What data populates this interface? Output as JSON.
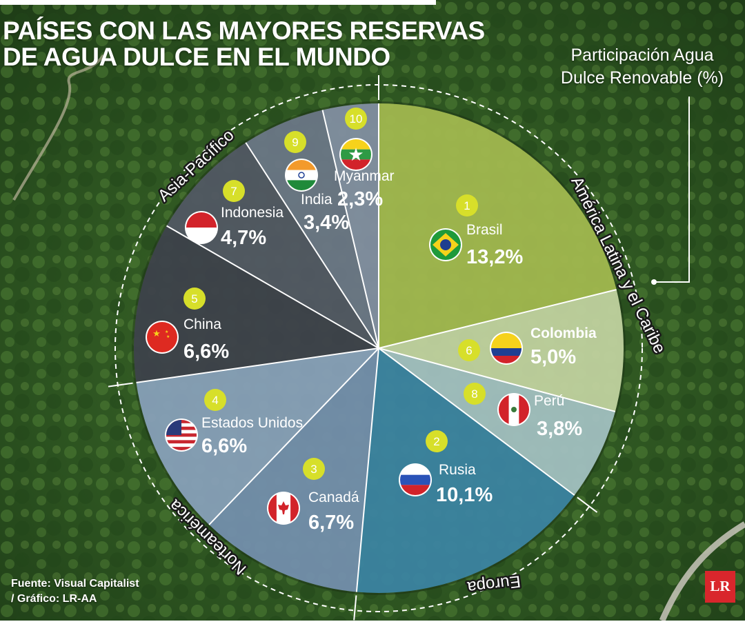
{
  "header": {
    "title_line1": "PAÍSES CON LAS MAYORES RESERVAS",
    "title_line2": "DE AGUA DULCE EN EL MUNDO"
  },
  "measure_label": {
    "line1": "Participación Agua",
    "line2": "Dulce Renovable (%)"
  },
  "source": {
    "line1": "Fuente: Visual Capitalist",
    "line2": "/ Gráfico: LR-AA"
  },
  "logo_text": "LR",
  "regions": [
    {
      "name": "América Latina y el Caribe",
      "color": "#c5cf6a"
    },
    {
      "name": "Europa",
      "color": "#2f7fa3"
    },
    {
      "name": "Norteamérica",
      "color": "#8fa6c2"
    },
    {
      "name": "Asia-Pacífico",
      "color": "#4a4f5c"
    }
  ],
  "chart_data": {
    "type": "pie",
    "unit": "%",
    "slices": [
      {
        "rank": "1",
        "country": "Brasil",
        "value": 13.2,
        "label": "13,2%",
        "region": "América Latina y el Caribe",
        "flag": "flag-brazil-icon",
        "color": "#a9bf52"
      },
      {
        "rank": "6",
        "country": "Colombia",
        "value": 5.0,
        "label": "5,0%",
        "region": "América Latina y el Caribe",
        "flag": "flag-colombia-icon",
        "color": "#c9d9a6"
      },
      {
        "rank": "8",
        "country": "Perú",
        "value": 3.8,
        "label": "3,8%",
        "region": "América Latina y el Caribe",
        "flag": "flag-peru-icon",
        "color": "#a9c7c9"
      },
      {
        "rank": "2",
        "country": "Rusia",
        "value": 10.1,
        "label": "10,1%",
        "region": "Europa",
        "flag": "flag-russia-icon",
        "color": "#3d87a9"
      },
      {
        "rank": "3",
        "country": "Canadá",
        "value": 6.7,
        "label": "6,7%",
        "region": "Norteamérica",
        "flag": "flag-canada-icon",
        "color": "#7893b4"
      },
      {
        "rank": "4",
        "country": "Estados Unidos",
        "value": 6.6,
        "label": "6,6%",
        "region": "Norteamérica",
        "flag": "flag-usa-icon",
        "color": "#8da5c1"
      },
      {
        "rank": "5",
        "country": "China",
        "value": 6.6,
        "label": "6,6%",
        "region": "Asia-Pacífico",
        "flag": "flag-china-icon",
        "color": "#3f434e"
      },
      {
        "rank": "7",
        "country": "Indonesia",
        "value": 4.7,
        "label": "4,7%",
        "region": "Asia-Pacífico",
        "flag": "flag-indonesia-icon",
        "color": "#545a67"
      },
      {
        "rank": "9",
        "country": "India",
        "value": 3.4,
        "label": "3,4%",
        "region": "Asia-Pacífico",
        "flag": "flag-india-icon",
        "color": "#6f7a8c"
      },
      {
        "rank": "10",
        "country": "Myanmar",
        "value": 2.3,
        "label": "2,3%",
        "region": "Asia-Pacífico",
        "flag": "flag-myanmar-icon",
        "color": "#8794a8"
      }
    ]
  }
}
